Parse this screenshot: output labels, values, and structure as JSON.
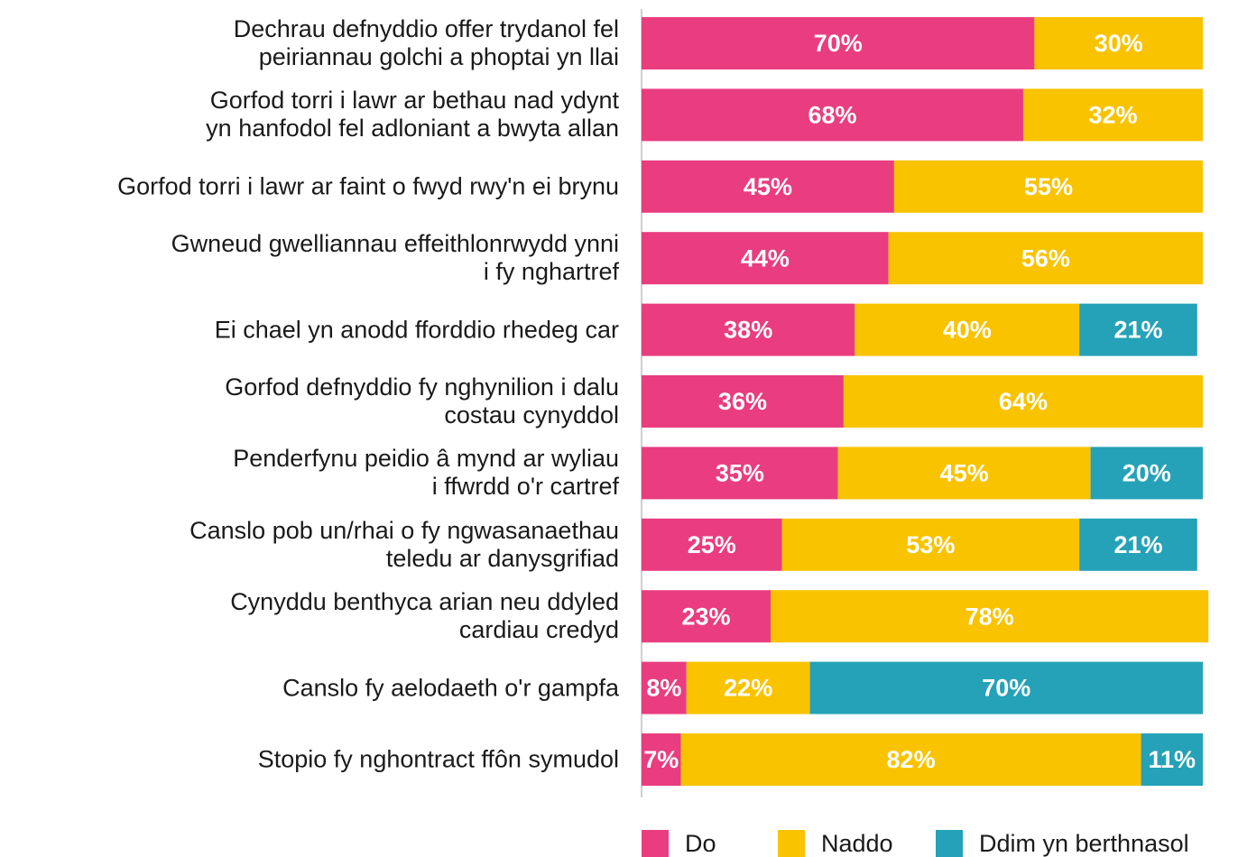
{
  "chart_data": {
    "type": "stacked-bar",
    "categories": [
      "Dechrau defnyddio offer trydanol fel\npeiriannau golchi a phoptai yn llai",
      "Gorfod torri i lawr ar bethau nad ydynt\nyn hanfodol fel adloniant a bwyta allan",
      "Gorfod torri i lawr ar faint o fwyd rwy'n ei brynu",
      "Gwneud gwelliannau effeithlonrwydd ynni\ni fy nghartref",
      "Ei chael yn anodd fforddio rhedeg car",
      "Gorfod defnyddio fy nghynilion i dalu\ncostau cynyddol",
      "Penderfynu peidio â mynd ar wyliau\ni ffwrdd o'r cartref",
      "Canslo pob un/rhai o fy ngwasanaethau\nteledu ar danysgrifiad",
      "Cynyddu benthyca arian neu ddyled\ncardiau credyd",
      "Canslo fy aelodaeth o'r gampfa",
      "Stopio fy nghontract ffôn symudol"
    ],
    "series": [
      {
        "name": "Do",
        "color": "#e93d80",
        "values": [
          70,
          68,
          45,
          44,
          38,
          36,
          35,
          25,
          23,
          8,
          7
        ],
        "value_labels": [
          "70%",
          "68%",
          "45%",
          "44%",
          "38%",
          "36%",
          "35%",
          "25%",
          "23%",
          "8%",
          "7%"
        ]
      },
      {
        "name": "Naddo",
        "color": "#f9c300",
        "values": [
          30,
          32,
          55,
          56,
          40,
          64,
          45,
          53,
          78,
          22,
          82
        ],
        "value_labels": [
          "30%",
          "32%",
          "55%",
          "56%",
          "40%",
          "64%",
          "45%",
          "53%",
          "78%",
          "22%",
          "82%"
        ]
      },
      {
        "name": "Ddim yn berthnasol",
        "color": "#25a2b8",
        "values": [
          null,
          null,
          null,
          null,
          21,
          null,
          20,
          21,
          null,
          70,
          11
        ],
        "value_labels": [
          null,
          null,
          null,
          null,
          "21%",
          null,
          "20%",
          "21%",
          null,
          "70%",
          "11%"
        ]
      }
    ],
    "xlim": [
      0,
      100
    ]
  }
}
